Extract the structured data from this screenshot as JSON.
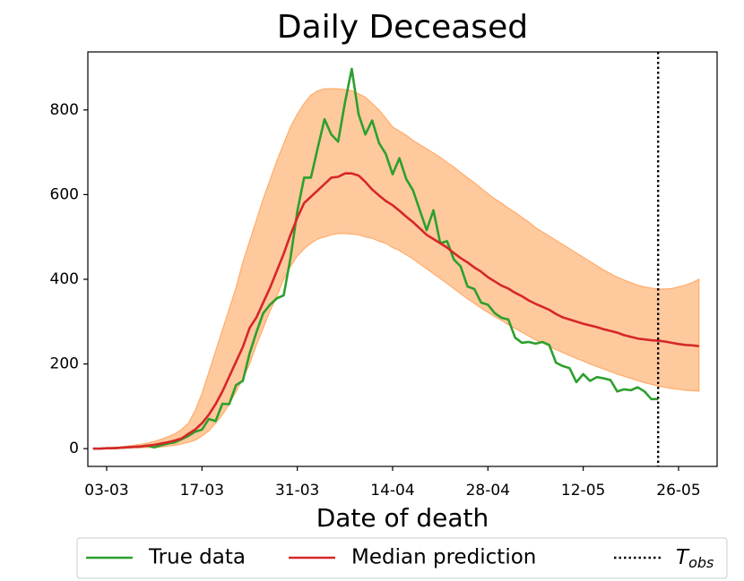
{
  "chart_data": {
    "type": "line",
    "title": "Daily Deceased",
    "x_label": "Date of death",
    "categories": [
      "01-03",
      "02-03",
      "03-03",
      "04-03",
      "05-03",
      "06-03",
      "07-03",
      "08-03",
      "09-03",
      "10-03",
      "11-03",
      "12-03",
      "13-03",
      "14-03",
      "15-03",
      "16-03",
      "17-03",
      "18-03",
      "19-03",
      "20-03",
      "21-03",
      "22-03",
      "23-03",
      "24-03",
      "25-03",
      "26-03",
      "27-03",
      "28-03",
      "29-03",
      "30-03",
      "31-03",
      "01-04",
      "02-04",
      "03-04",
      "04-04",
      "05-04",
      "06-04",
      "07-04",
      "08-04",
      "09-04",
      "10-04",
      "11-04",
      "12-04",
      "13-04",
      "14-04",
      "15-04",
      "16-04",
      "17-04",
      "18-04",
      "19-04",
      "20-04",
      "21-04",
      "22-04",
      "23-04",
      "24-04",
      "25-04",
      "26-04",
      "27-04",
      "28-04",
      "29-04",
      "30-04",
      "01-05",
      "02-05",
      "03-05",
      "04-05",
      "05-05",
      "06-05",
      "07-05",
      "08-05",
      "09-05",
      "10-05",
      "11-05",
      "12-05",
      "13-05",
      "14-05",
      "15-05",
      "16-05",
      "17-05",
      "18-05",
      "19-05",
      "20-05",
      "21-05",
      "22-05",
      "23-05",
      "24-05",
      "25-05",
      "26-05",
      "27-05",
      "28-05",
      "29-05"
    ],
    "xticks": [
      "03-03",
      "17-03",
      "31-03",
      "14-04",
      "28-04",
      "12-05",
      "26-05"
    ],
    "ylim": [
      -42,
      937
    ],
    "yticks": [
      0,
      200,
      400,
      600,
      800
    ],
    "series": [
      {
        "name": "True data",
        "color": "#2ca02c",
        "values": [
          0,
          0,
          1,
          1,
          2,
          3,
          4,
          5,
          7,
          3,
          8,
          12,
          15,
          22,
          30,
          40,
          45,
          70,
          65,
          106,
          105,
          150,
          160,
          225,
          275,
          320,
          340,
          355,
          362,
          450,
          560,
          640,
          640,
          710,
          778,
          742,
          725,
          817,
          897,
          790,
          742,
          775,
          722,
          696,
          648,
          686,
          637,
          610,
          563,
          516,
          563,
          485,
          490,
          447,
          430,
          383,
          377,
          345,
          340,
          320,
          309,
          305,
          262,
          250,
          252,
          248,
          252,
          245,
          203,
          195,
          190,
          157,
          176,
          160,
          169,
          166,
          162,
          135,
          140,
          138,
          145,
          135,
          117,
          117,
          null,
          null,
          null,
          null,
          null,
          null
        ]
      },
      {
        "name": "Median prediction",
        "color": "#d62728",
        "values": [
          0,
          0,
          1,
          1,
          2,
          3,
          4,
          5,
          7,
          9,
          12,
          15,
          19,
          24,
          35,
          45,
          60,
          80,
          105,
          135,
          170,
          205,
          240,
          285,
          310,
          345,
          380,
          420,
          460,
          505,
          545,
          580,
          595,
          610,
          625,
          640,
          642,
          650,
          650,
          645,
          630,
          612,
          598,
          585,
          575,
          562,
          548,
          535,
          520,
          505,
          495,
          485,
          475,
          462,
          450,
          440,
          428,
          418,
          405,
          395,
          385,
          378,
          368,
          360,
          350,
          342,
          335,
          328,
          318,
          310,
          305,
          300,
          295,
          291,
          287,
          282,
          278,
          274,
          268,
          264,
          260,
          258,
          256,
          255,
          253,
          250,
          247,
          245,
          244,
          242
        ]
      }
    ],
    "band": {
      "color": "#ffc99e",
      "edge": "#ffac6a",
      "upper": [
        0,
        1,
        2,
        3,
        4,
        6,
        8,
        10,
        13,
        17,
        22,
        28,
        35,
        45,
        60,
        90,
        130,
        180,
        230,
        280,
        330,
        380,
        440,
        490,
        540,
        590,
        635,
        680,
        720,
        760,
        790,
        815,
        835,
        845,
        850,
        850,
        850,
        848,
        845,
        838,
        830,
        815,
        800,
        780,
        760,
        750,
        740,
        728,
        718,
        708,
        698,
        688,
        676,
        665,
        652,
        640,
        628,
        615,
        602,
        590,
        580,
        568,
        558,
        546,
        535,
        522,
        512,
        502,
        492,
        482,
        472,
        462,
        452,
        442,
        432,
        422,
        413,
        405,
        398,
        392,
        386,
        382,
        379,
        377,
        377,
        378,
        382,
        386,
        392,
        400
      ],
      "lower": [
        0,
        0,
        0,
        1,
        1,
        1,
        2,
        2,
        3,
        3,
        4,
        6,
        8,
        11,
        15,
        20,
        30,
        42,
        60,
        80,
        105,
        135,
        165,
        200,
        245,
        285,
        325,
        360,
        400,
        430,
        455,
        472,
        485,
        495,
        500,
        505,
        508,
        508,
        507,
        505,
        500,
        497,
        490,
        485,
        475,
        468,
        458,
        448,
        436,
        425,
        413,
        402,
        390,
        378,
        366,
        354,
        343,
        332,
        322,
        312,
        303,
        293,
        284,
        275,
        266,
        257,
        250,
        242,
        234,
        227,
        220,
        213,
        207,
        200,
        194,
        188,
        182,
        176,
        171,
        166,
        161,
        156,
        152,
        148,
        145,
        142,
        140,
        138,
        137,
        136
      ]
    },
    "vline": {
      "x": "23-05",
      "color": "#000000",
      "label": [
        "T",
        "obs"
      ]
    },
    "legend": "bottom"
  }
}
